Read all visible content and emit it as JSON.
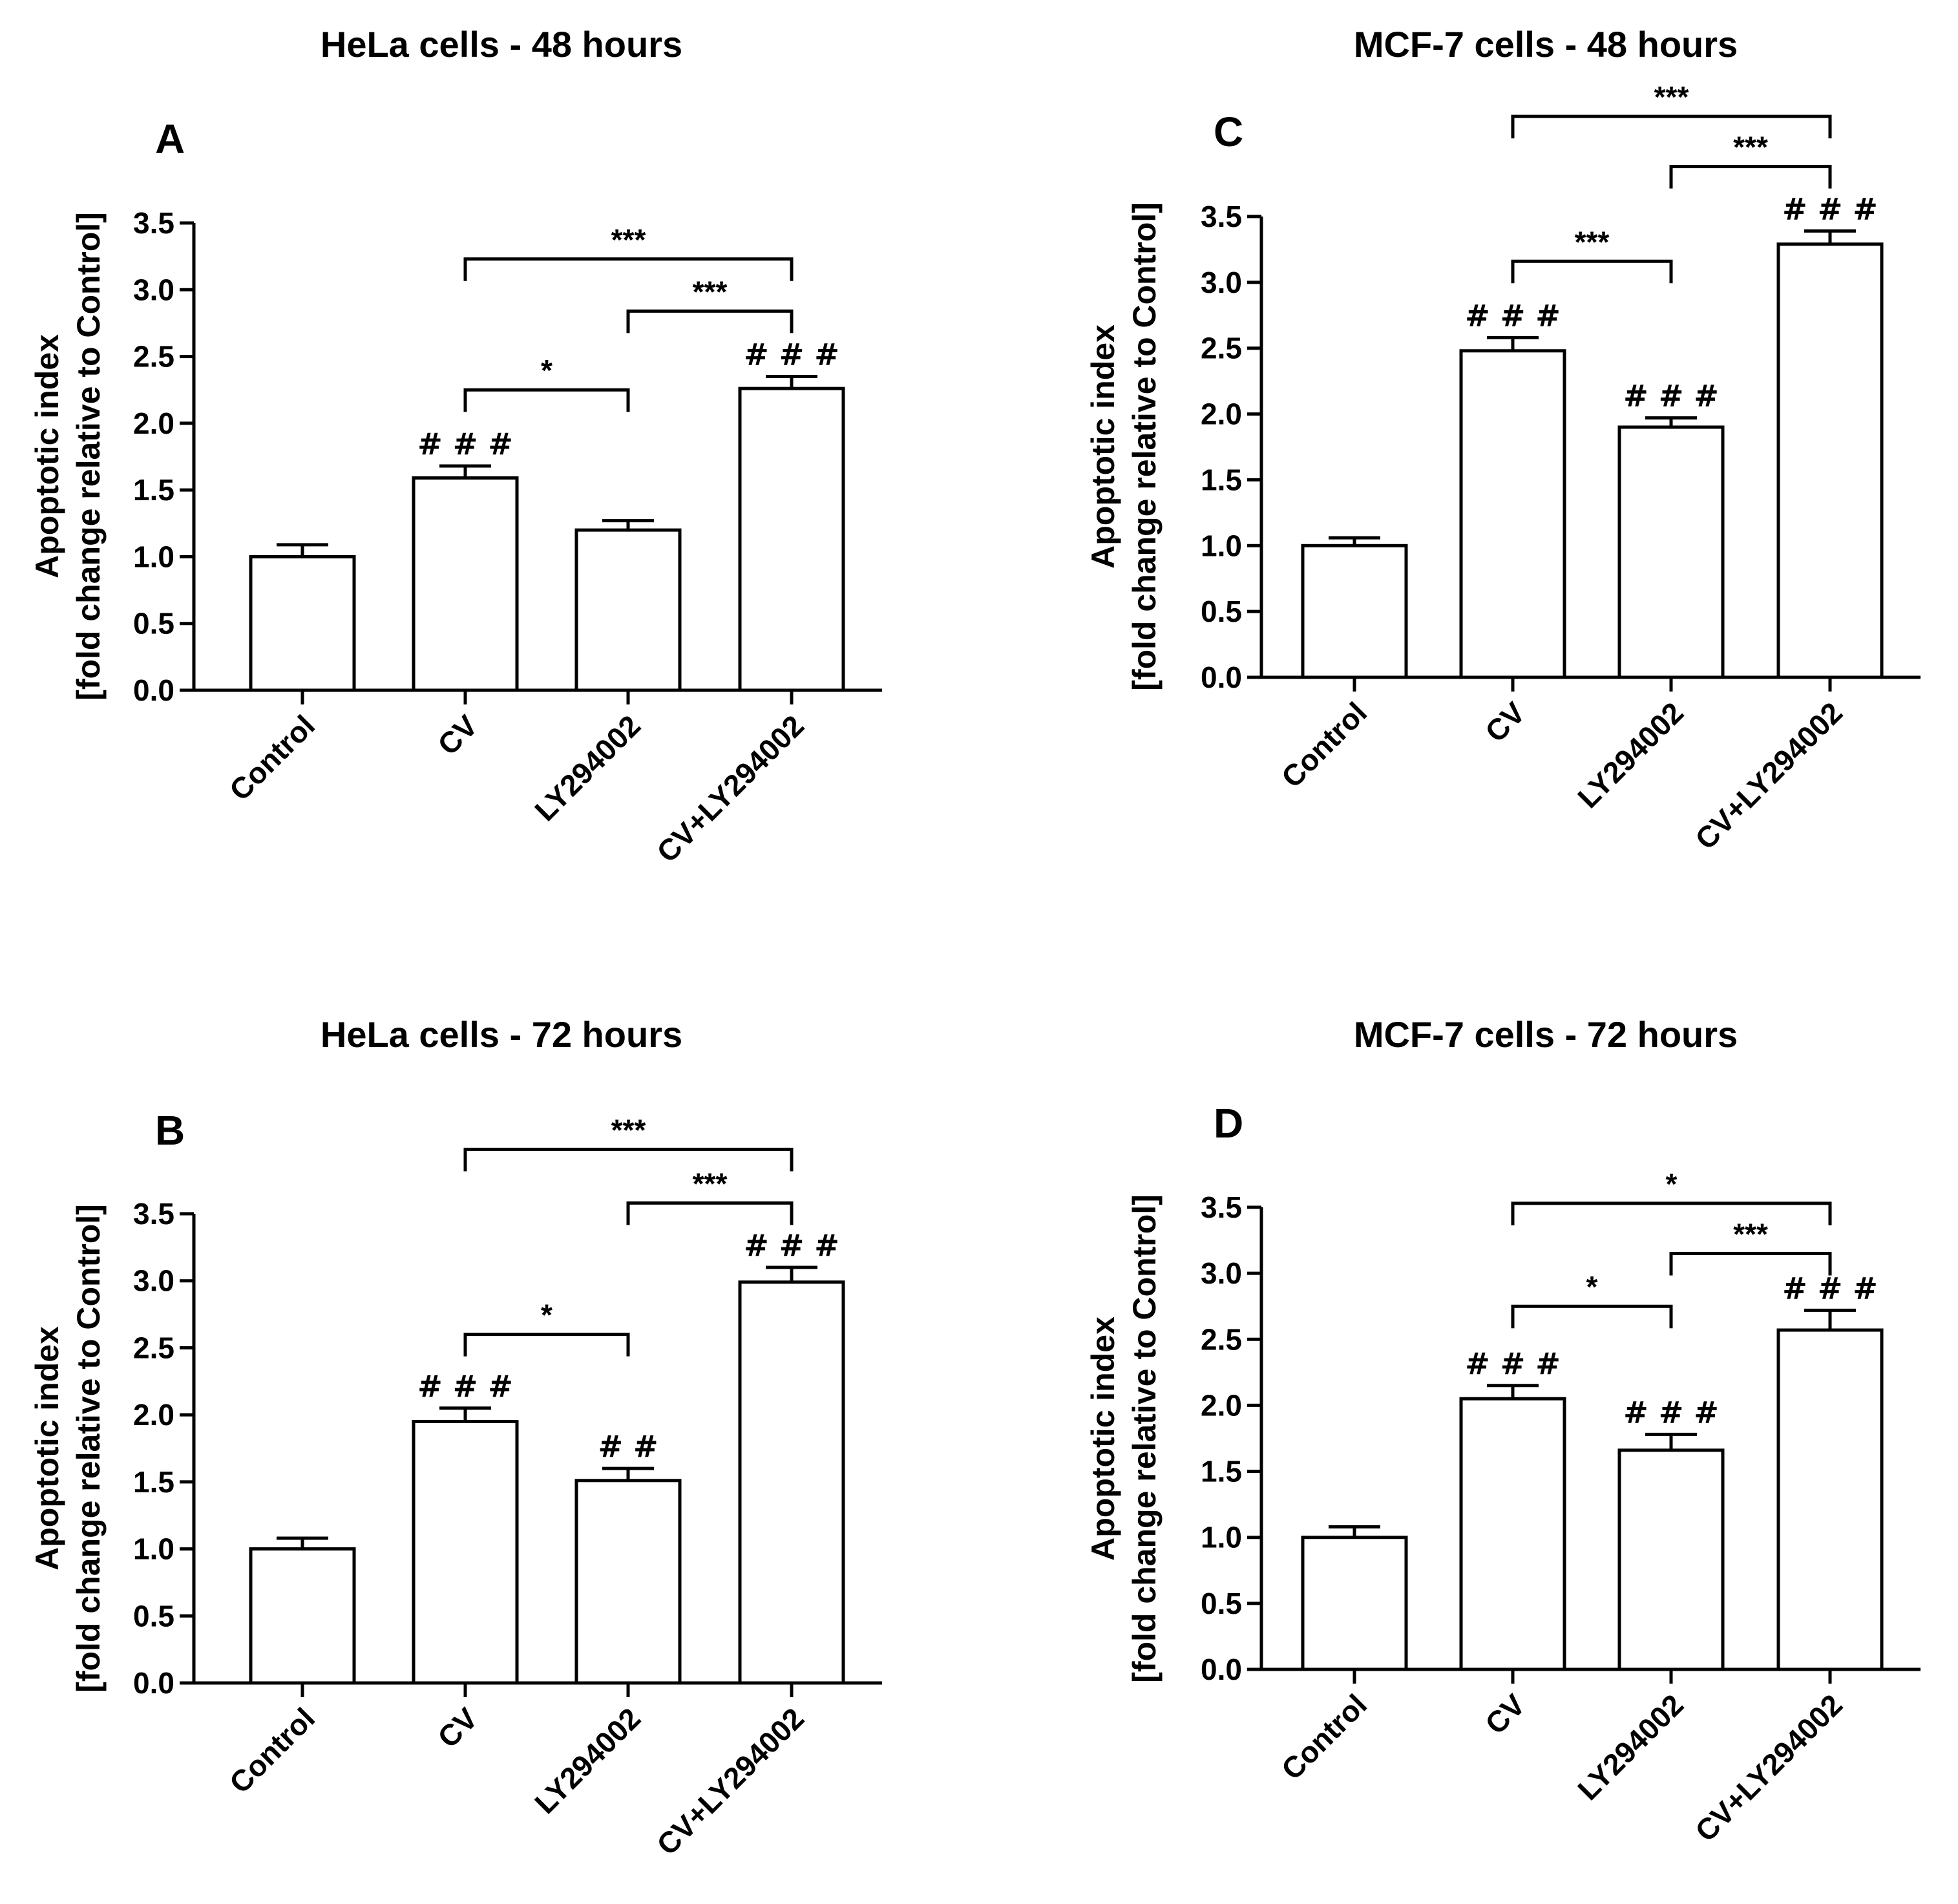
{
  "figure": {
    "y_label_line1": "Apoptotic index",
    "y_label_line2": "[fold change relative to Control]",
    "colors": {
      "bar_fill": "#ffffff",
      "ink": "#000000"
    }
  },
  "chart_data": [
    {
      "panel": "A",
      "type": "bar",
      "title": "HeLa cells - 48 hours",
      "categories": [
        "Control",
        "CV",
        "LY294002",
        "CV+LY294002"
      ],
      "values": [
        1.0,
        1.59,
        1.2,
        2.26
      ],
      "errors": [
        0.09,
        0.09,
        0.07,
        0.09
      ],
      "ylim": [
        0,
        3.5
      ],
      "yticks": [
        "0.0",
        "0.5",
        "1.0",
        "1.5",
        "2.0",
        "2.5",
        "3.0",
        "3.5"
      ],
      "hash_marks": [
        "",
        "# # #",
        "",
        "# # #"
      ],
      "comparisons": [
        {
          "from": 1,
          "to": 2,
          "label": "*",
          "level": 2.25
        },
        {
          "from": 2,
          "to": 3,
          "label": "***",
          "level": 2.84
        },
        {
          "from": 1,
          "to": 3,
          "label": "***",
          "level": 3.23
        }
      ]
    },
    {
      "panel": "C",
      "type": "bar",
      "title": "MCF-7 cells - 48 hours",
      "categories": [
        "Control",
        "CV",
        "LY294002",
        "CV+LY294002"
      ],
      "values": [
        1.0,
        2.48,
        1.9,
        3.29
      ],
      "errors": [
        0.06,
        0.1,
        0.07,
        0.1
      ],
      "ylim": [
        0,
        3.5
      ],
      "yticks": [
        "0.0",
        "0.5",
        "1.0",
        "1.5",
        "2.0",
        "2.5",
        "3.0",
        "3.5"
      ],
      "hash_marks": [
        "",
        "# # #",
        "# # #",
        "# # #"
      ],
      "comparisons": [
        {
          "from": 1,
          "to": 2,
          "label": "***",
          "level": 3.16
        },
        {
          "from": 2,
          "to": 3,
          "label": "***",
          "level": 3.88
        },
        {
          "from": 1,
          "to": 3,
          "label": "***",
          "level": 4.26
        }
      ]
    },
    {
      "panel": "B",
      "type": "bar",
      "title": "HeLa cells - 72 hours",
      "categories": [
        "Control",
        "CV",
        "LY294002",
        "CV+LY294002"
      ],
      "values": [
        1.0,
        1.95,
        1.51,
        2.99
      ],
      "errors": [
        0.08,
        0.1,
        0.09,
        0.11
      ],
      "ylim": [
        0,
        3.5
      ],
      "yticks": [
        "0.0",
        "0.5",
        "1.0",
        "1.5",
        "2.0",
        "2.5",
        "3.0",
        "3.5"
      ],
      "hash_marks": [
        "",
        "# # #",
        "# #",
        "# # #"
      ],
      "comparisons": [
        {
          "from": 1,
          "to": 2,
          "label": "*",
          "level": 2.6
        },
        {
          "from": 2,
          "to": 3,
          "label": "***",
          "level": 3.58
        },
        {
          "from": 1,
          "to": 3,
          "label": "***",
          "level": 3.98
        }
      ]
    },
    {
      "panel": "D",
      "type": "bar",
      "title": "MCF-7 cells - 72 hours",
      "categories": [
        "Control",
        "CV",
        "LY294002",
        "CV+LY294002"
      ],
      "values": [
        1.0,
        2.05,
        1.66,
        2.57
      ],
      "errors": [
        0.08,
        0.1,
        0.12,
        0.15
      ],
      "ylim": [
        0,
        3.5
      ],
      "yticks": [
        "0.0",
        "0.5",
        "1.0",
        "1.5",
        "2.0",
        "2.5",
        "3.0",
        "3.5"
      ],
      "hash_marks": [
        "",
        "# # #",
        "# # #",
        "# # #"
      ],
      "comparisons": [
        {
          "from": 1,
          "to": 2,
          "label": "*",
          "level": 2.75
        },
        {
          "from": 2,
          "to": 3,
          "label": "***",
          "level": 3.15
        },
        {
          "from": 1,
          "to": 3,
          "label": "*",
          "level": 3.53
        }
      ]
    }
  ]
}
